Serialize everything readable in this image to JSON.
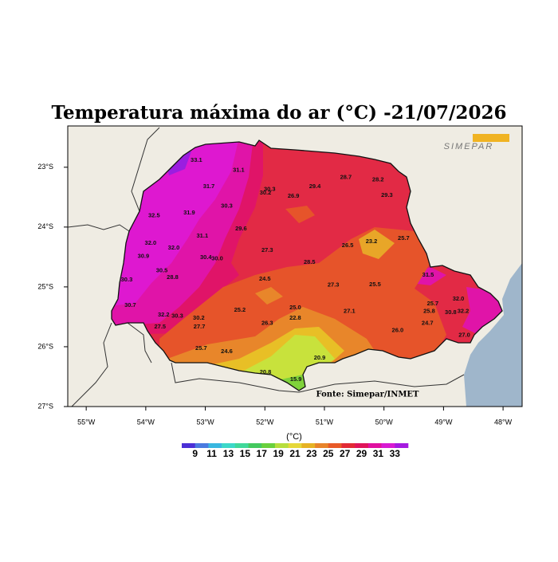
{
  "chart_data": {
    "type": "map",
    "title": "Temperatura máxima do ar (°C) -21/07/2026",
    "source": "Fonte: Simepar/INMET",
    "logo": "SIMEPAR",
    "xlim": [
      -55.31,
      -47.68
    ],
    "ylim": [
      -27,
      -22.31
    ],
    "xticks": [
      {
        "value": -55,
        "label": "55°W"
      },
      {
        "value": -54,
        "label": "54°W"
      },
      {
        "value": -53,
        "label": "53°W"
      },
      {
        "value": -52,
        "label": "52°W"
      },
      {
        "value": -51,
        "label": "51°W"
      },
      {
        "value": -50,
        "label": "50°W"
      },
      {
        "value": -49,
        "label": "49°W"
      },
      {
        "value": -48,
        "label": "48°W"
      }
    ],
    "yticks": [
      {
        "value": -23,
        "label": "23°S"
      },
      {
        "value": -24,
        "label": "24°S"
      },
      {
        "value": -25,
        "label": "25°S"
      },
      {
        "value": -26,
        "label": "26°S"
      },
      {
        "value": -27,
        "label": "27°S"
      }
    ],
    "stations": {
      "lon": [
        -53.15,
        -52.44,
        -52.94,
        -51.92,
        -51.99,
        -51.16,
        -50.64,
        -50.1,
        -51.52,
        -49.95,
        -52.64,
        -53.86,
        -53.27,
        -52.4,
        -53.05,
        -50.61,
        -50.21,
        -49.67,
        -53.92,
        -53.53,
        -54.04,
        -52.99,
        -52.8,
        -51.96,
        -51.25,
        -53.73,
        -53.55,
        -54.32,
        -52.0,
        -49.26,
        -50.85,
        -50.15,
        -54.26,
        -48.75,
        -52.42,
        -51.49,
        -50.58,
        -49.18,
        -49.24,
        -53.7,
        -53.47,
        -53.11,
        -51.49,
        -53.76,
        -53.1,
        -51.96,
        -49.27,
        -49.77,
        -48.88,
        -48.65,
        -53.07,
        -52.64,
        -51.08,
        -51.99,
        -51.48,
        -48.67
      ],
      "lat": [
        -22.88,
        -23.05,
        -23.32,
        -23.37,
        -23.43,
        -23.32,
        -23.17,
        -23.21,
        -23.48,
        -23.47,
        -23.65,
        -23.81,
        -23.76,
        -24.03,
        -24.15,
        -24.31,
        -24.24,
        -24.19,
        -24.27,
        -24.35,
        -24.49,
        -24.51,
        -24.53,
        -24.39,
        -24.59,
        -24.73,
        -24.84,
        -24.88,
        -24.87,
        -24.8,
        -24.97,
        -24.96,
        -25.31,
        -25.2,
        -25.39,
        -25.35,
        -25.41,
        -25.28,
        -25.41,
        -25.47,
        -25.49,
        -25.52,
        -25.52,
        -25.67,
        -25.67,
        -25.61,
        -25.61,
        -25.73,
        -25.43,
        -25.81,
        -26.03,
        -26.08,
        -26.19,
        -26.43,
        -26.55,
        -25.41
      ],
      "values": [
        33.1,
        31.1,
        31.7,
        30.3,
        30.2,
        29.4,
        28.7,
        28.2,
        26.9,
        29.3,
        30.3,
        32.5,
        31.9,
        29.6,
        31.1,
        26.5,
        23.2,
        25.7,
        32,
        32,
        30.9,
        30.4,
        30,
        27.3,
        28.5,
        30.5,
        28.8,
        30.3,
        24.5,
        31.5,
        27.3,
        25.5,
        30.7,
        32,
        25.2,
        25,
        27.1,
        25.7,
        25.8,
        32.2,
        30.3,
        30.2,
        22.8,
        27.5,
        27.7,
        26.3,
        24.7,
        26,
        30.8,
        27,
        25.7,
        24.6,
        20.9,
        20.8,
        15.9,
        32.2
      ],
      "value_labels": [
        "33.1",
        "31.1",
        "31.7",
        "30.3",
        "30.2",
        "29.4",
        "28.7",
        "28.2",
        "26.9",
        "29.3",
        "30.3",
        "32.5",
        "31.9",
        "29.6",
        "31.1",
        "26.5",
        "23.2",
        "25.7",
        "32.0",
        "32.0",
        "30.9",
        "30.4",
        "30.0",
        "27.3",
        "28.5",
        "30.5",
        "28.8",
        "30.3",
        "24.5",
        "31.5",
        "27.3",
        "25.5",
        "30.7",
        "32.0",
        "25.2",
        "25.0",
        "27.1",
        "25.7",
        "25.8",
        "32.2",
        "30.3",
        "30.2",
        "22.8",
        "27.5",
        "27.7",
        "26.3",
        "24.7",
        "26.0",
        "30.8",
        "27.0",
        "25.7",
        "24.6",
        "20.9",
        "20.8",
        "15.9",
        "32.2"
      ]
    },
    "legend": {
      "label": "(°C)",
      "ticks": [
        9,
        11,
        13,
        15,
        17,
        19,
        21,
        23,
        25,
        27,
        29,
        31,
        33
      ],
      "colors": [
        "#4b2fd6",
        "#4a7ae0",
        "#39b7e0",
        "#3dd8c9",
        "#40d89a",
        "#44c95f",
        "#69d03d",
        "#b7de3d",
        "#e6d83a",
        "#e6b224",
        "#e8842a",
        "#e85a28",
        "#e22a35",
        "#e0145a",
        "#e010a0",
        "#d81ad2",
        "#a51ae0"
      ]
    }
  }
}
